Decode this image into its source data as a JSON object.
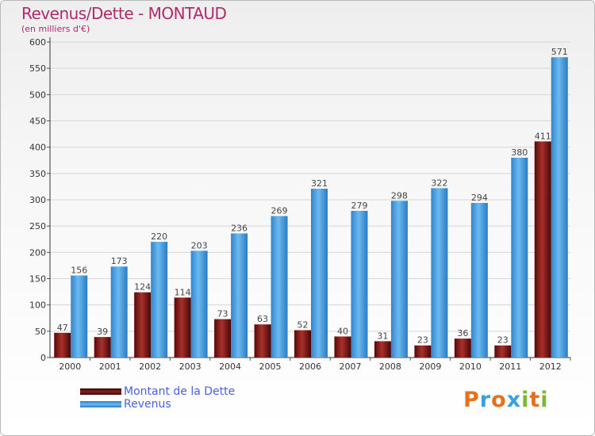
{
  "title": "Revenus/Dette - MONTAUD",
  "subtitle": "(en milliers d'€)",
  "legend": [
    {
      "label": "Montant de la Dette",
      "color": "#7a0f0f"
    },
    {
      "label": "Revenus",
      "color": "#3d9be0"
    }
  ],
  "logo": {
    "letters": [
      "P",
      "r",
      "o",
      "x",
      "i",
      "t",
      "i"
    ],
    "colors": [
      "#e8701a",
      "#3aa0e0",
      "#e8701a",
      "#3aa0e0",
      "#7cb830",
      "#e8701a",
      "#7cb830"
    ]
  },
  "chart_data": {
    "type": "bar",
    "title": "Revenus/Dette - MONTAUD",
    "ylabel": "(en milliers d'€)",
    "categories": [
      "2000",
      "2001",
      "2002",
      "2003",
      "2004",
      "2005",
      "2006",
      "2007",
      "2008",
      "2009",
      "2010",
      "2011",
      "2012"
    ],
    "ylim": [
      0,
      600
    ],
    "yticks": [
      0,
      50,
      100,
      150,
      200,
      250,
      300,
      350,
      400,
      450,
      500,
      550,
      600
    ],
    "grid": true,
    "legend_position": "bottom-left",
    "series": [
      {
        "name": "Montant de la Dette",
        "color": "#7a0f0f",
        "values": [
          47,
          39,
          124,
          114,
          73,
          63,
          52,
          40,
          31,
          23,
          36,
          23,
          411
        ]
      },
      {
        "name": "Revenus",
        "color": "#3d9be0",
        "values": [
          156,
          173,
          220,
          203,
          236,
          269,
          321,
          279,
          298,
          322,
          294,
          380,
          571
        ]
      }
    ]
  }
}
